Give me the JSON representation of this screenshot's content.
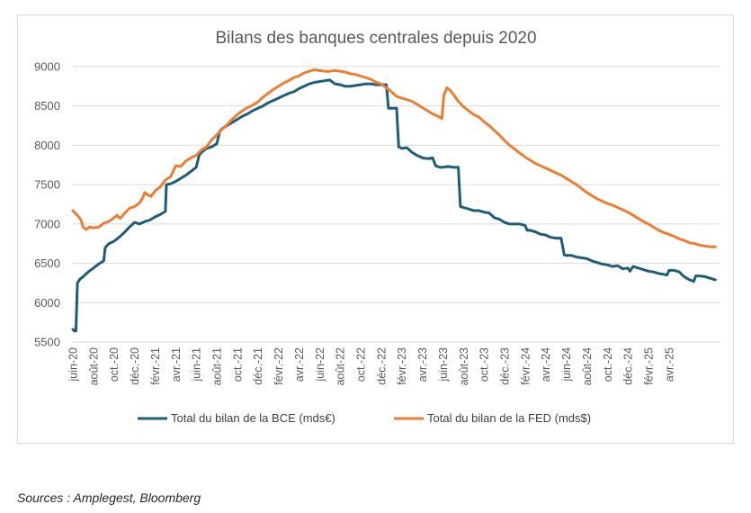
{
  "source_note": "Sources : Amplegest, Bloomberg",
  "chart_data": {
    "type": "line",
    "title": "Bilans des banques centrales depuis 2020",
    "xlabel": "",
    "ylabel": "",
    "ylim": [
      5500,
      9000
    ],
    "yticks": [
      5500,
      6000,
      6500,
      7000,
      7500,
      8000,
      8500,
      9000
    ],
    "x_tick_labels": [
      "juin-20",
      "août-20",
      "oct.-20",
      "déc.-20",
      "févr.-21",
      "avr.-21",
      "juin-21",
      "août-21",
      "oct.-21",
      "déc.-21",
      "févr.-22",
      "avr.-22",
      "juin-22",
      "août-22",
      "oct.-22",
      "déc.-22",
      "févr.-23",
      "avr.-23",
      "juin-23",
      "août-23",
      "oct.-23",
      "déc.-23",
      "févr.-24",
      "avr.-24",
      "juin-24",
      "août-24",
      "oct.-24",
      "déc.-24",
      "févr.-25",
      "avr.-25"
    ],
    "x_unit": "months since juin-20",
    "grid": true,
    "legend_position": "bottom",
    "series": [
      {
        "name": "Total du bilan de la BCE (mds€)",
        "color": "#1f5c78",
        "points": [
          [
            0,
            5660
          ],
          [
            0.15,
            5640
          ],
          [
            0.3,
            5640
          ],
          [
            0.45,
            6250
          ],
          [
            0.7,
            6300
          ],
          [
            1,
            6330
          ],
          [
            1.5,
            6390
          ],
          [
            2,
            6440
          ],
          [
            2.5,
            6490
          ],
          [
            3,
            6530
          ],
          [
            3.15,
            6700
          ],
          [
            3.5,
            6750
          ],
          [
            4,
            6780
          ],
          [
            4.5,
            6830
          ],
          [
            5,
            6890
          ],
          [
            5.5,
            6960
          ],
          [
            6,
            7020
          ],
          [
            6.5,
            7000
          ],
          [
            7,
            7030
          ],
          [
            7.5,
            7050
          ],
          [
            8,
            7090
          ],
          [
            8.5,
            7120
          ],
          [
            9,
            7160
          ],
          [
            9.1,
            7500
          ],
          [
            9.5,
            7510
          ],
          [
            10,
            7540
          ],
          [
            10.5,
            7580
          ],
          [
            11,
            7620
          ],
          [
            11.5,
            7670
          ],
          [
            12,
            7720
          ],
          [
            12.3,
            7880
          ],
          [
            12.6,
            7920
          ],
          [
            13,
            7960
          ],
          [
            13.5,
            7980
          ],
          [
            14,
            8020
          ],
          [
            14.3,
            8180
          ],
          [
            14.6,
            8220
          ],
          [
            15,
            8250
          ],
          [
            15.5,
            8290
          ],
          [
            16,
            8330
          ],
          [
            16.5,
            8370
          ],
          [
            17,
            8400
          ],
          [
            17.5,
            8440
          ],
          [
            18,
            8470
          ],
          [
            18.5,
            8500
          ],
          [
            19,
            8540
          ],
          [
            19.5,
            8570
          ],
          [
            20,
            8600
          ],
          [
            20.5,
            8630
          ],
          [
            21,
            8660
          ],
          [
            21.5,
            8680
          ],
          [
            22,
            8720
          ],
          [
            22.5,
            8750
          ],
          [
            23,
            8780
          ],
          [
            23.5,
            8800
          ],
          [
            24,
            8810
          ],
          [
            24.5,
            8820
          ],
          [
            25,
            8830
          ],
          [
            25.5,
            8780
          ],
          [
            26,
            8770
          ],
          [
            26.5,
            8750
          ],
          [
            27,
            8750
          ],
          [
            27.5,
            8760
          ],
          [
            28,
            8770
          ],
          [
            28.5,
            8780
          ],
          [
            29,
            8780
          ],
          [
            29.5,
            8770
          ],
          [
            30,
            8770
          ],
          [
            30.5,
            8770
          ],
          [
            30.7,
            8470
          ],
          [
            31,
            8470
          ],
          [
            31.5,
            8470
          ],
          [
            31.7,
            7980
          ],
          [
            32,
            7960
          ],
          [
            32.5,
            7970
          ],
          [
            33,
            7910
          ],
          [
            33.5,
            7870
          ],
          [
            34,
            7840
          ],
          [
            34.5,
            7830
          ],
          [
            35,
            7840
          ],
          [
            35.3,
            7740
          ],
          [
            35.7,
            7720
          ],
          [
            36,
            7720
          ],
          [
            36.5,
            7730
          ],
          [
            37,
            7720
          ],
          [
            37.5,
            7720
          ],
          [
            37.7,
            7220
          ],
          [
            38,
            7210
          ],
          [
            38.5,
            7190
          ],
          [
            39,
            7170
          ],
          [
            39.5,
            7170
          ],
          [
            40,
            7150
          ],
          [
            40.5,
            7140
          ],
          [
            41,
            7080
          ],
          [
            41.5,
            7060
          ],
          [
            42,
            7020
          ],
          [
            42.5,
            7000
          ],
          [
            43,
            7000
          ],
          [
            43.5,
            7000
          ],
          [
            44,
            6980
          ],
          [
            44.2,
            6920
          ],
          [
            44.5,
            6920
          ],
          [
            45,
            6900
          ],
          [
            45.5,
            6870
          ],
          [
            46,
            6860
          ],
          [
            46.5,
            6830
          ],
          [
            47,
            6820
          ],
          [
            47.5,
            6820
          ],
          [
            47.8,
            6610
          ],
          [
            48,
            6600
          ],
          [
            48.5,
            6600
          ],
          [
            49,
            6580
          ],
          [
            49.5,
            6570
          ],
          [
            50,
            6560
          ],
          [
            50.5,
            6530
          ],
          [
            51,
            6510
          ],
          [
            51.5,
            6490
          ],
          [
            52,
            6480
          ],
          [
            52.5,
            6460
          ],
          [
            53,
            6470
          ],
          [
            53.5,
            6430
          ],
          [
            54,
            6440
          ],
          [
            54.2,
            6400
          ],
          [
            54.5,
            6460
          ],
          [
            55,
            6440
          ],
          [
            55.5,
            6420
          ],
          [
            56,
            6400
          ],
          [
            56.5,
            6390
          ],
          [
            57,
            6370
          ],
          [
            57.5,
            6360
          ],
          [
            57.8,
            6350
          ],
          [
            58,
            6410
          ],
          [
            58.5,
            6410
          ],
          [
            59,
            6390
          ],
          [
            59.3,
            6350
          ],
          [
            59.6,
            6320
          ],
          [
            60,
            6290
          ],
          [
            60.4,
            6270
          ],
          [
            60.6,
            6340
          ],
          [
            61,
            6340
          ],
          [
            61.5,
            6330
          ],
          [
            62,
            6310
          ],
          [
            62.5,
            6290
          ]
        ]
      },
      {
        "name": "Total du bilan de la FED (mds$)",
        "color": "#ed7d31",
        "points": [
          [
            0,
            7170
          ],
          [
            0.2,
            7140
          ],
          [
            0.5,
            7100
          ],
          [
            0.8,
            7050
          ],
          [
            1,
            6960
          ],
          [
            1.3,
            6930
          ],
          [
            1.6,
            6960
          ],
          [
            2,
            6950
          ],
          [
            2.5,
            6960
          ],
          [
            3,
            7010
          ],
          [
            3.5,
            7030
          ],
          [
            4,
            7080
          ],
          [
            4.3,
            7110
          ],
          [
            4.6,
            7070
          ],
          [
            5,
            7130
          ],
          [
            5.5,
            7200
          ],
          [
            6,
            7220
          ],
          [
            6.5,
            7270
          ],
          [
            6.8,
            7330
          ],
          [
            7,
            7400
          ],
          [
            7.3,
            7370
          ],
          [
            7.6,
            7350
          ],
          [
            8,
            7420
          ],
          [
            8.5,
            7470
          ],
          [
            9,
            7560
          ],
          [
            9.5,
            7600
          ],
          [
            9.8,
            7680
          ],
          [
            10,
            7740
          ],
          [
            10.5,
            7730
          ],
          [
            11,
            7800
          ],
          [
            11.5,
            7840
          ],
          [
            12,
            7870
          ],
          [
            12.5,
            7940
          ],
          [
            13,
            7980
          ],
          [
            13.5,
            8070
          ],
          [
            14,
            8130
          ],
          [
            14.5,
            8200
          ],
          [
            15,
            8260
          ],
          [
            15.5,
            8330
          ],
          [
            16,
            8390
          ],
          [
            16.5,
            8440
          ],
          [
            17,
            8480
          ],
          [
            17.5,
            8510
          ],
          [
            18,
            8550
          ],
          [
            18.5,
            8610
          ],
          [
            19,
            8660
          ],
          [
            19.5,
            8710
          ],
          [
            20,
            8750
          ],
          [
            20.5,
            8790
          ],
          [
            21,
            8820
          ],
          [
            21.5,
            8860
          ],
          [
            22,
            8880
          ],
          [
            22.5,
            8920
          ],
          [
            23,
            8940
          ],
          [
            23.5,
            8960
          ],
          [
            24,
            8950
          ],
          [
            24.5,
            8940
          ],
          [
            25,
            8940
          ],
          [
            25.5,
            8950
          ],
          [
            26,
            8940
          ],
          [
            26.5,
            8930
          ],
          [
            27,
            8910
          ],
          [
            27.5,
            8900
          ],
          [
            28,
            8880
          ],
          [
            28.5,
            8860
          ],
          [
            29,
            8840
          ],
          [
            29.5,
            8800
          ],
          [
            30,
            8780
          ],
          [
            30.5,
            8730
          ],
          [
            31,
            8680
          ],
          [
            31.5,
            8620
          ],
          [
            32,
            8600
          ],
          [
            32.5,
            8580
          ],
          [
            33,
            8560
          ],
          [
            33.5,
            8520
          ],
          [
            34,
            8480
          ],
          [
            34.5,
            8440
          ],
          [
            35,
            8400
          ],
          [
            35.5,
            8370
          ],
          [
            35.9,
            8340
          ],
          [
            36.1,
            8640
          ],
          [
            36.4,
            8730
          ],
          [
            36.7,
            8700
          ],
          [
            37,
            8650
          ],
          [
            37.5,
            8560
          ],
          [
            38,
            8490
          ],
          [
            38.5,
            8440
          ],
          [
            39,
            8390
          ],
          [
            39.5,
            8360
          ],
          [
            40,
            8300
          ],
          [
            40.5,
            8250
          ],
          [
            41,
            8190
          ],
          [
            41.5,
            8130
          ],
          [
            42,
            8060
          ],
          [
            42.5,
            8000
          ],
          [
            43,
            7950
          ],
          [
            43.5,
            7900
          ],
          [
            44,
            7850
          ],
          [
            44.5,
            7810
          ],
          [
            45,
            7770
          ],
          [
            45.5,
            7740
          ],
          [
            46,
            7710
          ],
          [
            46.5,
            7680
          ],
          [
            47,
            7650
          ],
          [
            47.5,
            7620
          ],
          [
            48,
            7580
          ],
          [
            48.5,
            7540
          ],
          [
            49,
            7500
          ],
          [
            49.5,
            7450
          ],
          [
            50,
            7400
          ],
          [
            50.5,
            7360
          ],
          [
            51,
            7320
          ],
          [
            51.5,
            7290
          ],
          [
            52,
            7260
          ],
          [
            52.5,
            7240
          ],
          [
            53,
            7210
          ],
          [
            53.5,
            7180
          ],
          [
            54,
            7150
          ],
          [
            54.5,
            7110
          ],
          [
            55,
            7070
          ],
          [
            55.5,
            7030
          ],
          [
            56,
            7000
          ],
          [
            56.5,
            6960
          ],
          [
            57,
            6920
          ],
          [
            57.5,
            6890
          ],
          [
            58,
            6870
          ],
          [
            58.5,
            6840
          ],
          [
            59,
            6810
          ],
          [
            59.5,
            6790
          ],
          [
            60,
            6760
          ],
          [
            60.5,
            6750
          ],
          [
            61,
            6730
          ],
          [
            61.5,
            6720
          ],
          [
            62,
            6710
          ],
          [
            62.5,
            6710
          ]
        ]
      }
    ]
  }
}
